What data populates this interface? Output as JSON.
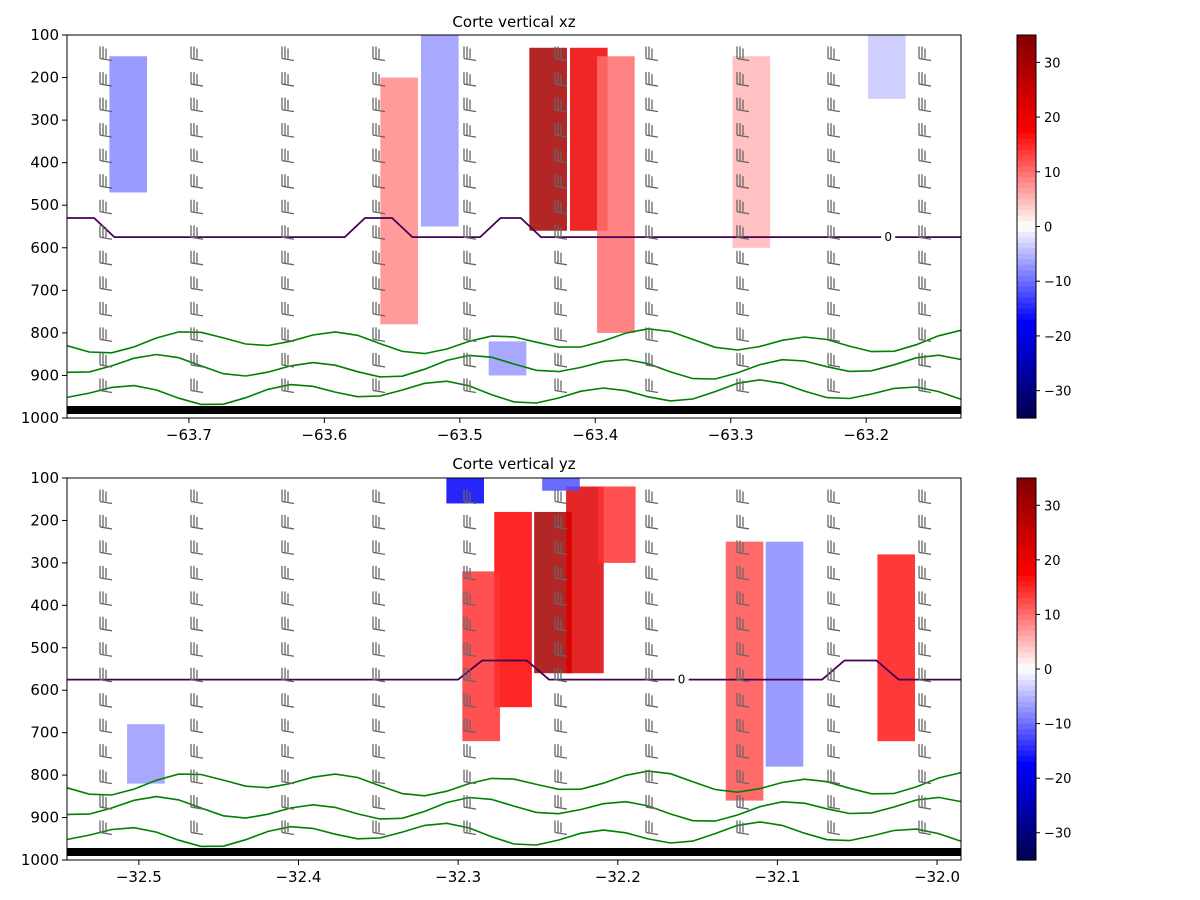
{
  "chart_data": [
    {
      "type": "heatmap",
      "title": "Corte vertical xz",
      "xlabel": "",
      "ylabel": "",
      "xlim": [
        -63.79,
        -63.13
      ],
      "ylim": [
        1000,
        100
      ],
      "x_ticks": [
        "−63.7",
        "−63.6",
        "−63.5",
        "−63.4",
        "−63.3",
        "−63.2"
      ],
      "x_tick_values": [
        -63.7,
        -63.6,
        -63.5,
        -63.4,
        -63.3,
        -63.2
      ],
      "y_ticks": [
        "100",
        "200",
        "300",
        "400",
        "500",
        "600",
        "700",
        "800",
        "900",
        "1000"
      ],
      "y_tick_values": [
        100,
        200,
        300,
        400,
        500,
        600,
        700,
        800,
        900,
        1000
      ],
      "colormap": "seismic",
      "clim": [
        -35,
        35
      ],
      "colorbar_ticks": [
        "30",
        "20",
        "10",
        "0",
        "−10",
        "−20",
        "−30"
      ],
      "colorbar_tick_values": [
        30,
        20,
        10,
        0,
        -10,
        -20,
        -30
      ],
      "zero_contour_label": "0",
      "zero_contour": [
        [
          -63.79,
          530
        ],
        [
          -63.77,
          530
        ],
        [
          -63.755,
          575
        ],
        [
          -63.585,
          575
        ],
        [
          -63.57,
          530
        ],
        [
          -63.55,
          530
        ],
        [
          -63.535,
          575
        ],
        [
          -63.485,
          575
        ],
        [
          -63.47,
          530
        ],
        [
          -63.455,
          530
        ],
        [
          -63.44,
          575
        ],
        [
          -63.13,
          575
        ]
      ],
      "anomaly_columns": [
        {
          "x": -63.44,
          "p": [
            130,
            560
          ],
          "value": 30
        },
        {
          "x": -63.41,
          "p": [
            130,
            560
          ],
          "value": 20
        },
        {
          "x": -63.39,
          "p": [
            150,
            800
          ],
          "value": 10
        },
        {
          "x": -63.55,
          "p": [
            200,
            780
          ],
          "value": 8
        },
        {
          "x": -63.75,
          "p": [
            150,
            470
          ],
          "value": -8
        },
        {
          "x": -63.52,
          "p": [
            100,
            550
          ],
          "value": -7
        },
        {
          "x": -63.47,
          "p": [
            820,
            900
          ],
          "value": -7
        },
        {
          "x": -63.29,
          "p": [
            150,
            600
          ],
          "value": 5
        },
        {
          "x": -63.19,
          "p": [
            100,
            250
          ],
          "value": -4
        }
      ]
    },
    {
      "type": "heatmap",
      "title": "Corte vertical yz",
      "xlabel": "",
      "ylabel": "",
      "xlim": [
        -32.545,
        -31.985
      ],
      "ylim": [
        1000,
        100
      ],
      "x_ticks": [
        "−32.5",
        "−32.4",
        "−32.3",
        "−32.2",
        "−32.1",
        "−32.0"
      ],
      "x_tick_values": [
        -32.5,
        -32.4,
        -32.3,
        -32.2,
        -32.1,
        -32.0
      ],
      "y_ticks": [
        "100",
        "200",
        "300",
        "400",
        "500",
        "600",
        "700",
        "800",
        "900",
        "1000"
      ],
      "y_tick_values": [
        100,
        200,
        300,
        400,
        500,
        600,
        700,
        800,
        900,
        1000
      ],
      "colormap": "seismic",
      "clim": [
        -35,
        35
      ],
      "colorbar_ticks": [
        "30",
        "20",
        "10",
        "0",
        "−10",
        "−20",
        "−30"
      ],
      "colorbar_tick_values": [
        30,
        20,
        10,
        0,
        -10,
        -20,
        -30
      ],
      "zero_contour_label": "0",
      "zero_contour": [
        [
          -32.545,
          575
        ],
        [
          -32.3,
          575
        ],
        [
          -32.285,
          530
        ],
        [
          -32.257,
          530
        ],
        [
          -32.243,
          575
        ],
        [
          -32.072,
          575
        ],
        [
          -32.058,
          530
        ],
        [
          -32.038,
          530
        ],
        [
          -32.024,
          575
        ],
        [
          -31.985,
          575
        ]
      ],
      "anomaly_columns": [
        {
          "x": -32.245,
          "p": [
            180,
            560
          ],
          "value": 30
        },
        {
          "x": -32.225,
          "p": [
            120,
            560
          ],
          "value": 22
        },
        {
          "x": -32.27,
          "p": [
            180,
            640
          ],
          "value": 18
        },
        {
          "x": -32.29,
          "p": [
            320,
            720
          ],
          "value": 14
        },
        {
          "x": -32.205,
          "p": [
            120,
            300
          ],
          "value": 14
        },
        {
          "x": -32.125,
          "p": [
            250,
            860
          ],
          "value": 12
        },
        {
          "x": -32.03,
          "p": [
            280,
            720
          ],
          "value": 16
        },
        {
          "x": -32.1,
          "p": [
            250,
            780
          ],
          "value": -8
        },
        {
          "x": -32.3,
          "p": [
            100,
            160
          ],
          "value": -18
        },
        {
          "x": -32.24,
          "p": [
            100,
            130
          ],
          "value": -12
        },
        {
          "x": -32.5,
          "p": [
            680,
            820
          ],
          "value": -7
        }
      ]
    }
  ]
}
